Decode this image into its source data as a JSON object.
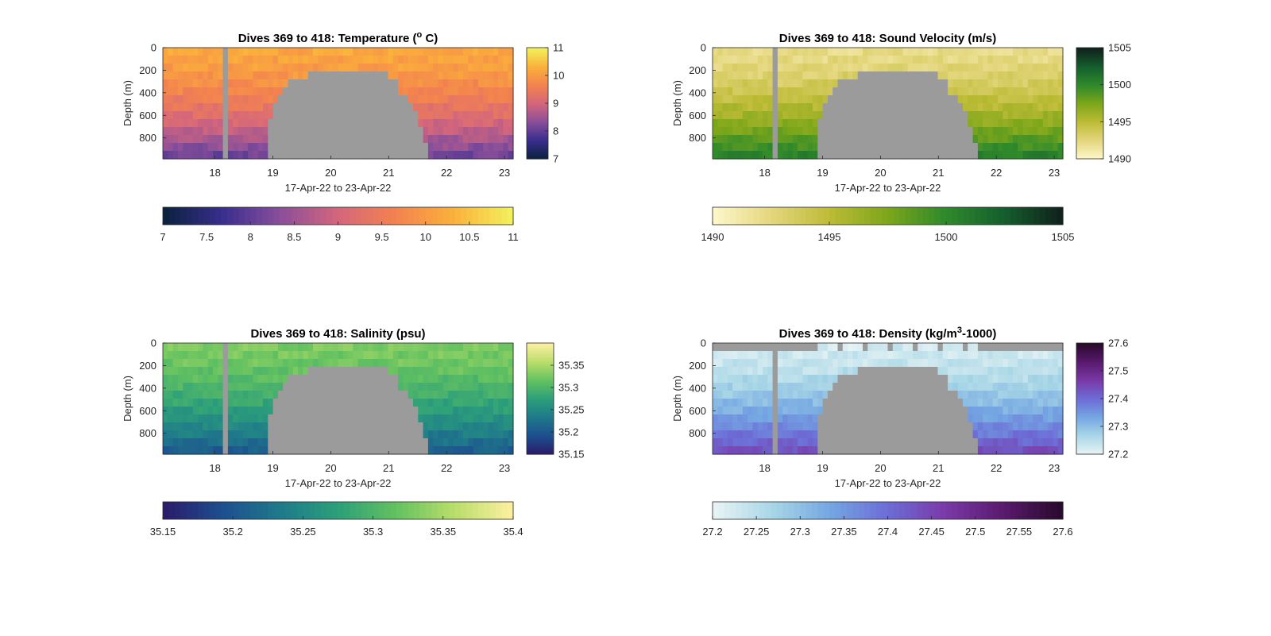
{
  "chart_data": [
    {
      "type": "heatmap",
      "title_main": "Dives 369 to 418: Temperature (",
      "title_sup": "o",
      "title_end": " C)",
      "xlabel": "17-Apr-22 to 23-Apr-22",
      "ylabel": "Depth (m)",
      "x_range": [
        17.1,
        23.15
      ],
      "y_range": [
        0,
        985
      ],
      "x_ticks": [
        "18",
        "19",
        "20",
        "21",
        "22",
        "23"
      ],
      "y_ticks": [
        "0",
        "200",
        "400",
        "600",
        "800"
      ],
      "colormap": [
        "#0b2240",
        "#3a2e8f",
        "#8a4f9a",
        "#d4667c",
        "#f3824f",
        "#fbb03b",
        "#f2ef5b"
      ],
      "value_range": [
        7,
        11
      ],
      "values_side": {
        "surface": 10.2,
        "deep": 8.0
      },
      "right_colorbar_ticks": [
        "7",
        "8",
        "9",
        "10",
        "11"
      ],
      "bottom_colorbar_ticks": [
        "7",
        "7.5",
        "8",
        "8.5",
        "9",
        "9.5",
        "10",
        "10.5",
        "11"
      ],
      "surface_gap": false
    },
    {
      "type": "heatmap",
      "title_main": "Dives 369 to 418: Sound Velocity (m/s)",
      "title_sup": "",
      "title_end": "",
      "xlabel": "17-Apr-22 to 23-Apr-22",
      "ylabel": "Depth (m)",
      "x_range": [
        17.1,
        23.15
      ],
      "y_range": [
        0,
        985
      ],
      "x_ticks": [
        "18",
        "19",
        "20",
        "21",
        "22",
        "23"
      ],
      "y_ticks": [
        "0",
        "200",
        "400",
        "600",
        "800"
      ],
      "colormap": [
        "#fcf6c8",
        "#e3d57a",
        "#bcbb35",
        "#7da61a",
        "#2f8a2b",
        "#155f2d",
        "#10231c"
      ],
      "value_range": [
        1490,
        1505
      ],
      "values_side": {
        "surface": 1492,
        "deep": 1501
      },
      "right_colorbar_ticks": [
        "1490",
        "1495",
        "1500",
        "1505"
      ],
      "bottom_colorbar_ticks": [
        "1490",
        "1495",
        "1500",
        "1505"
      ],
      "surface_gap": false
    },
    {
      "type": "heatmap",
      "title_main": "Dives 369 to 418: Salinity (psu)",
      "title_sup": "",
      "title_end": "",
      "xlabel": "17-Apr-22 to 23-Apr-22",
      "ylabel": "Depth (m)",
      "x_range": [
        17.1,
        23.15
      ],
      "y_range": [
        0,
        985
      ],
      "x_ticks": [
        "18",
        "19",
        "20",
        "21",
        "22",
        "23"
      ],
      "y_ticks": [
        "0",
        "200",
        "400",
        "600",
        "800"
      ],
      "colormap": [
        "#2a1d6b",
        "#1d4f8f",
        "#1f7a8a",
        "#2c9f7a",
        "#62c160",
        "#b7dd6a",
        "#fbef9e"
      ],
      "value_range": [
        35.15,
        35.4
      ],
      "values_side": {
        "surface": 35.33,
        "deep": 35.2
      },
      "right_colorbar_ticks": [
        "35.15",
        "35.2",
        "35.25",
        "35.3",
        "35.35"
      ],
      "bottom_colorbar_ticks": [
        "35.15",
        "35.2",
        "35.25",
        "35.3",
        "35.35",
        "35.4"
      ],
      "surface_gap": false
    },
    {
      "type": "heatmap",
      "title_main": "Dives 369 to 418: Density (kg/m",
      "title_sup": "3",
      "title_end": "-1000)",
      "xlabel": "17-Apr-22 to 23-Apr-22",
      "ylabel": "Depth (m)",
      "x_range": [
        17.1,
        23.15
      ],
      "y_range": [
        0,
        985
      ],
      "x_ticks": [
        "18",
        "19",
        "20",
        "21",
        "22",
        "23"
      ],
      "y_ticks": [
        "0",
        "200",
        "400",
        "600",
        "800"
      ],
      "colormap": [
        "#e6f3f4",
        "#a8d6e6",
        "#74a6e2",
        "#6c6dd6",
        "#7a3aa8",
        "#5a1a6e",
        "#2a0a2e"
      ],
      "value_range": [
        27.2,
        27.6
      ],
      "values_side": {
        "surface": 27.22,
        "deep": 27.45
      },
      "right_colorbar_ticks": [
        "27.2",
        "27.3",
        "27.4",
        "27.5",
        "27.6"
      ],
      "bottom_colorbar_ticks": [
        "27.2",
        "27.25",
        "27.3",
        "27.35",
        "27.4",
        "27.45",
        "27.5",
        "27.55",
        "27.6"
      ],
      "surface_gap": true
    }
  ],
  "colors": {
    "no_data": "#9b9b9b",
    "axis": "#262626"
  }
}
